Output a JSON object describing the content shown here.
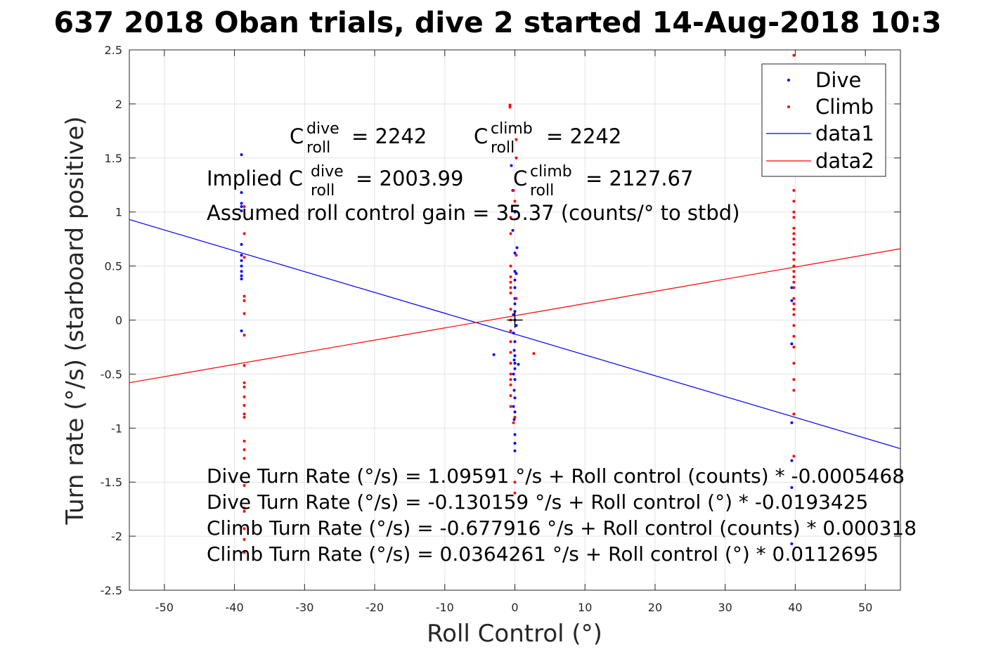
{
  "chart_data": {
    "type": "scatter",
    "title": "637 2018 Oban trials, dive 2 started 14-Aug-2018 10:3",
    "xlabel": "Roll Control (°)",
    "ylabel": "Turn rate (°/s) (starboard positive)",
    "xlim": [
      -55,
      55
    ],
    "ylim": [
      -2.5,
      2.5
    ],
    "xticks": [
      -50,
      -40,
      -30,
      -20,
      -10,
      0,
      10,
      20,
      30,
      40,
      50
    ],
    "yticks": [
      -2.5,
      -2,
      -1.5,
      -1,
      -0.5,
      0,
      0.5,
      1,
      1.5,
      2,
      2.5
    ],
    "grid": true,
    "legend_position": "top-right",
    "colors": {
      "dive": "#0000ff",
      "climb": "#ff0000",
      "data1": "#0000ff",
      "data2": "#ff0000"
    },
    "series": [
      {
        "name": "Dive",
        "kind": "points",
        "points": [
          [
            -39,
            1.53
          ],
          [
            -39,
            1.18
          ],
          [
            -39,
            1.08
          ],
          [
            -39,
            1.05
          ],
          [
            -39,
            1.01
          ],
          [
            -39,
            0.7
          ],
          [
            -39,
            0.6
          ],
          [
            -39,
            0.55
          ],
          [
            -39,
            0.5
          ],
          [
            -39,
            0.45
          ],
          [
            -39,
            0.41
          ],
          [
            -39,
            0.38
          ],
          [
            -39,
            -0.1
          ],
          [
            -0.5,
            1.43
          ],
          [
            -0.3,
            1.2
          ],
          [
            0,
            1.0
          ],
          [
            -0.3,
            0.83
          ],
          [
            0.3,
            0.67
          ],
          [
            0,
            0.62
          ],
          [
            0,
            0.45
          ],
          [
            0.2,
            0.43
          ],
          [
            0,
            0.37
          ],
          [
            0,
            0.3
          ],
          [
            0,
            0.2
          ],
          [
            0,
            0.15
          ],
          [
            0,
            0.08
          ],
          [
            -0.2,
            0.05
          ],
          [
            0,
            0.0
          ],
          [
            0.2,
            -0.05
          ],
          [
            -0.2,
            -0.12
          ],
          [
            0,
            -0.2
          ],
          [
            -0.1,
            -0.28
          ],
          [
            0,
            -0.33
          ],
          [
            -0.1,
            -0.37
          ],
          [
            0,
            -0.4
          ],
          [
            0.5,
            -0.41
          ],
          [
            0,
            -0.45
          ],
          [
            -0.2,
            -0.5
          ],
          [
            0,
            -0.55
          ],
          [
            -0.1,
            -0.65
          ],
          [
            0,
            -0.72
          ],
          [
            -0.2,
            -0.8
          ],
          [
            0,
            -0.85
          ],
          [
            -0.1,
            -0.92
          ],
          [
            0,
            -1.06
          ],
          [
            0,
            -1.14
          ],
          [
            0,
            -1.21
          ],
          [
            -3,
            -0.32
          ],
          [
            39.5,
            0.3
          ],
          [
            39.5,
            0.18
          ],
          [
            39.5,
            -0.22
          ],
          [
            39.5,
            -0.95
          ],
          [
            39.5,
            -1.3
          ],
          [
            39.5,
            -1.55
          ],
          [
            39.5,
            -2.07
          ]
        ]
      },
      {
        "name": "Climb",
        "kind": "points",
        "points": [
          [
            -38.6,
            1.05
          ],
          [
            -38.6,
            0.8
          ],
          [
            -38.6,
            0.58
          ],
          [
            -38.6,
            0.22
          ],
          [
            -38.6,
            0.18
          ],
          [
            -38.6,
            0.06
          ],
          [
            -38.6,
            -0.14
          ],
          [
            -38.6,
            -0.42
          ],
          [
            -38.6,
            -0.58
          ],
          [
            -38.6,
            -0.62
          ],
          [
            -38.6,
            -0.71
          ],
          [
            -38.6,
            -0.79
          ],
          [
            -38.6,
            -0.87
          ],
          [
            -38.6,
            -0.9
          ],
          [
            -38.6,
            -1.12
          ],
          [
            -38.6,
            -1.2
          ],
          [
            -38.6,
            -1.28
          ],
          [
            -38.6,
            -1.53
          ],
          [
            -38.6,
            -1.74
          ],
          [
            -38.6,
            -1.77
          ],
          [
            -38.6,
            -1.93
          ],
          [
            -38.6,
            -2.03
          ],
          [
            -38.6,
            -2.15
          ],
          [
            -0.7,
            1.97
          ],
          [
            -0.7,
            1.99
          ],
          [
            0.2,
            1.67
          ],
          [
            0.2,
            1.5
          ],
          [
            -0.2,
            1.2
          ],
          [
            0,
            1.1
          ],
          [
            -0.6,
            0.95
          ],
          [
            -0.6,
            0.8
          ],
          [
            0.2,
            0.6
          ],
          [
            -0.6,
            0.5
          ],
          [
            -0.6,
            0.4
          ],
          [
            -0.6,
            0.35
          ],
          [
            -0.6,
            0.3
          ],
          [
            -0.6,
            0.25
          ],
          [
            0.2,
            0.2
          ],
          [
            -0.6,
            0.1
          ],
          [
            -0.6,
            0.0
          ],
          [
            -0.6,
            -0.1
          ],
          [
            -0.6,
            -0.2
          ],
          [
            -0.6,
            -0.3
          ],
          [
            -0.6,
            -0.4
          ],
          [
            -0.6,
            -0.5
          ],
          [
            -0.6,
            -0.55
          ],
          [
            -0.6,
            -0.6
          ],
          [
            -0.6,
            -0.7
          ],
          [
            -0.6,
            -0.8
          ],
          [
            0,
            -0.9
          ],
          [
            -0.2,
            -0.95
          ],
          [
            0,
            -1.5
          ],
          [
            0,
            -1.6
          ],
          [
            2.7,
            -0.31
          ],
          [
            39.8,
            2.45
          ],
          [
            39.8,
            1.2
          ],
          [
            39.8,
            1.1
          ],
          [
            39.8,
            1.0
          ],
          [
            39.8,
            0.95
          ],
          [
            39.8,
            0.85
          ],
          [
            39.8,
            0.8
          ],
          [
            39.8,
            0.75
          ],
          [
            39.8,
            0.7
          ],
          [
            39.8,
            0.62
          ],
          [
            39.8,
            0.56
          ],
          [
            39.8,
            0.5
          ],
          [
            39.8,
            0.45
          ],
          [
            39.8,
            0.4
          ],
          [
            39.8,
            0.35
          ],
          [
            39.8,
            0.3
          ],
          [
            39.8,
            0.2
          ],
          [
            39.8,
            0.15
          ],
          [
            39.8,
            0.1
          ],
          [
            39.8,
            0.05
          ],
          [
            39.8,
            -0.05
          ],
          [
            39.8,
            -0.15
          ],
          [
            39.8,
            -0.25
          ],
          [
            39.8,
            -0.4
          ],
          [
            39.8,
            -0.55
          ],
          [
            39.8,
            -0.65
          ],
          [
            39.8,
            -0.87
          ],
          [
            39.8,
            -1.26
          ]
        ]
      },
      {
        "name": "data1",
        "kind": "line",
        "x": [
          -55,
          55
        ],
        "y": [
          0.93,
          -1.19
        ]
      },
      {
        "name": "data2",
        "kind": "line",
        "x": [
          -55,
          55
        ],
        "y": [
          -0.58,
          0.66
        ]
      }
    ],
    "annotations": {
      "c_roll_dive": "= 2242",
      "c_roll_climb": "= 2242",
      "implied_prefix": "Implied C",
      "implied_dive": "= 2003.99",
      "implied_climb": "= 2127.67",
      "assumed_gain": "Assumed roll control gain = 35.37 (counts/° to stbd)",
      "c_base": "C",
      "sub_roll": "roll",
      "sup_dive": "dive",
      "sup_climb": "climb",
      "eq1": "Dive Turn Rate (°/s) = 1.09591 °/s + Roll control (counts) * -0.0005468",
      "eq2": "Dive Turn Rate (°/s) = -0.130159 °/s + Roll control (°) * -0.0193425",
      "eq3": "Climb Turn Rate (°/s) = -0.677916 °/s + Roll control (counts) * 0.000318",
      "eq4": "Climb Turn Rate (°/s) = 0.0364261 °/s + Roll control (°) * 0.0112695"
    },
    "marker": {
      "x": 0,
      "y": 0,
      "symbol": "+"
    }
  }
}
